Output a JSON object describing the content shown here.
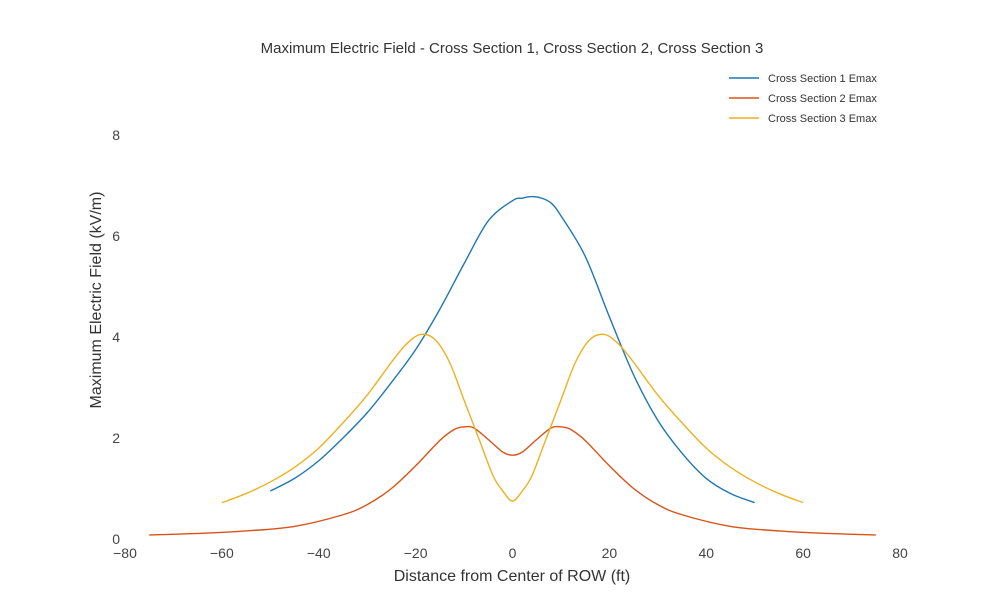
{
  "chart_data": {
    "type": "line",
    "title": "Maximum Electric Field - Cross Section 1, Cross Section 2, Cross Section 3",
    "xlabel": "Distance from Center of ROW (ft)",
    "ylabel": "Maximum Electric Field (kV/m)",
    "xlim": [
      -80,
      80
    ],
    "ylim": [
      0,
      8
    ],
    "xticks": [
      -80,
      -60,
      -40,
      -20,
      0,
      20,
      40,
      60,
      80
    ],
    "xtick_labels": [
      "−80",
      "−60",
      "−40",
      "−20",
      "0",
      "20",
      "40",
      "60",
      "80"
    ],
    "yticks": [
      0,
      2,
      4,
      6,
      8
    ],
    "ytick_labels": [
      "0",
      "2",
      "4",
      "6",
      "8"
    ],
    "grid": false,
    "legend_position": "top-right",
    "series": [
      {
        "name": "Cross Section 1 Emax",
        "color": "#1f77b4",
        "x": [
          -50,
          -45,
          -40,
          -35,
          -30,
          -25,
          -20,
          -15,
          -10,
          -5,
          0,
          2,
          4,
          6,
          8,
          10,
          15,
          20,
          25,
          30,
          35,
          40,
          45,
          50
        ],
        "y": [
          0.95,
          1.2,
          1.55,
          2.0,
          2.5,
          3.1,
          3.75,
          4.55,
          5.45,
          6.3,
          6.7,
          6.75,
          6.78,
          6.75,
          6.65,
          6.4,
          5.6,
          4.4,
          3.25,
          2.35,
          1.7,
          1.2,
          0.9,
          0.72
        ]
      },
      {
        "name": "Cross Section 2 Emax",
        "color": "#d95319",
        "x": [
          -75,
          -65,
          -55,
          -45,
          -35,
          -30,
          -25,
          -20,
          -15,
          -12,
          -10,
          -8,
          -5,
          -2,
          0,
          2,
          5,
          8,
          10,
          12,
          15,
          20,
          25,
          30,
          35,
          45,
          55,
          65,
          75
        ],
        "y": [
          0.08,
          0.11,
          0.16,
          0.25,
          0.48,
          0.68,
          1.0,
          1.45,
          1.95,
          2.17,
          2.22,
          2.2,
          1.97,
          1.72,
          1.66,
          1.72,
          1.97,
          2.2,
          2.22,
          2.17,
          1.95,
          1.45,
          1.0,
          0.68,
          0.48,
          0.25,
          0.16,
          0.11,
          0.08
        ]
      },
      {
        "name": "Cross Section 3 Emax",
        "color": "#edb120",
        "x": [
          -60,
          -55,
          -50,
          -45,
          -40,
          -35,
          -30,
          -25,
          -22,
          -19,
          -16,
          -13,
          -10,
          -7,
          -4,
          -2,
          0,
          2,
          4,
          7,
          10,
          13,
          16,
          19,
          22,
          25,
          30,
          35,
          40,
          45,
          50,
          55,
          60
        ],
        "y": [
          0.72,
          0.9,
          1.13,
          1.42,
          1.8,
          2.3,
          2.85,
          3.5,
          3.85,
          4.05,
          3.95,
          3.5,
          2.75,
          2.0,
          1.25,
          0.95,
          0.75,
          0.95,
          1.25,
          2.0,
          2.75,
          3.5,
          3.95,
          4.05,
          3.85,
          3.5,
          2.85,
          2.3,
          1.8,
          1.42,
          1.13,
          0.9,
          0.72
        ]
      }
    ]
  }
}
